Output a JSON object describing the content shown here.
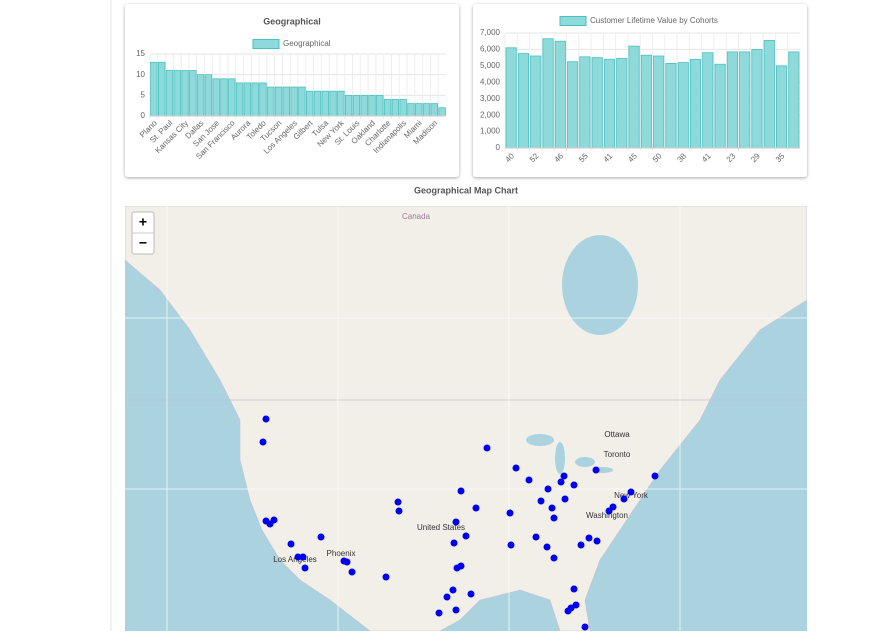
{
  "chart_data": [
    {
      "type": "bar",
      "title": "Geographical",
      "legend": "Geographical",
      "color": "#8ed9d9",
      "border": "#4bc0c0",
      "categories": [
        "Plano",
        null,
        "St. Paul",
        null,
        "Kansas City",
        null,
        "Dallas",
        null,
        "San Jose",
        null,
        "San Francisco",
        null,
        "Aurora",
        null,
        "Toledo",
        null,
        "Tucson",
        null,
        "Los Angeles",
        null,
        "Gilbert",
        null,
        "Tulsa",
        null,
        "New York",
        null,
        "St. Louis",
        null,
        "Oakland",
        null,
        "Charlotte",
        null,
        "Indianapolis",
        null,
        "Miami",
        null,
        "Madison",
        null
      ],
      "values": [
        13,
        13,
        11,
        11,
        11,
        11,
        10,
        10,
        9,
        9,
        9,
        8,
        8,
        8,
        8,
        7,
        7,
        7,
        7,
        7,
        6,
        6,
        6,
        6,
        6,
        5,
        5,
        5,
        5,
        5,
        4,
        4,
        4,
        3,
        3,
        3,
        3,
        2
      ],
      "ylim": [
        0,
        15
      ],
      "yticks": [
        0,
        5,
        10,
        15
      ],
      "grid": true
    },
    {
      "type": "bar",
      "legend": "Customer Lifetime Value by Cohorts",
      "color": "#8ed9d9",
      "border": "#4bc0c0",
      "categories": [
        "40",
        null,
        "52",
        null,
        "46",
        null,
        "55",
        null,
        "41",
        null,
        "45",
        null,
        "50",
        null,
        "38",
        null,
        "41",
        null,
        "23",
        null,
        "29",
        null,
        "35",
        null
      ],
      "values": [
        6100,
        5750,
        5600,
        6650,
        6500,
        5250,
        5550,
        5500,
        5400,
        5450,
        6200,
        5650,
        5600,
        5150,
        5200,
        5400,
        5800,
        5100,
        5850,
        5850,
        6000,
        6550,
        5000,
        5850
      ],
      "ylim": [
        0,
        7000
      ],
      "yticks": [
        0,
        {
          "value": 1000,
          "label": "1,000"
        },
        {
          "value": 2000,
          "label": "2,000"
        },
        {
          "value": 3000,
          "label": "3,000"
        },
        {
          "value": 4000,
          "label": "4,000"
        },
        {
          "value": 5000,
          "label": "5,000"
        },
        {
          "value": 6000,
          "label": "6,000"
        },
        {
          "value": 7000,
          "label": "7,000"
        }
      ],
      "grid": true
    }
  ],
  "map": {
    "title": "Geographical Map Chart",
    "zoom_in": "+",
    "zoom_out": "−",
    "labels": {
      "canada": "Canada",
      "ottawa": "Ottawa",
      "toronto": "Toronto",
      "new_york": "New York",
      "washington": "Washington",
      "united_states": "United States",
      "phoenix": "Phoenix",
      "los_angeles": "Los Angeles"
    }
  }
}
